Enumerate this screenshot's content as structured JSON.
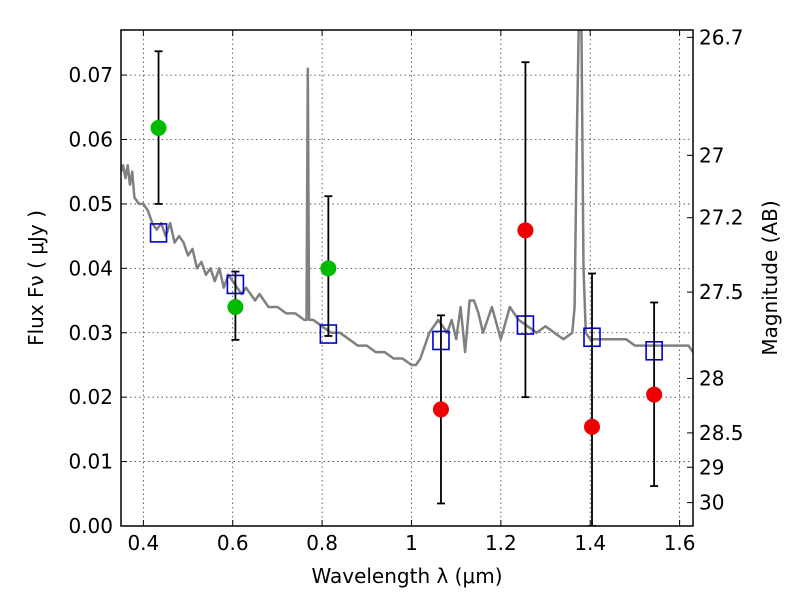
{
  "chart_data": {
    "type": "scatter",
    "title": "",
    "xlabel": "Wavelength  λ (μm)",
    "ylabel": "Flux  Fν  ( μJy )",
    "y2label": "Magnitude (AB)",
    "xlim": [
      0.35,
      1.63
    ],
    "ylim": [
      0.0,
      0.077
    ],
    "grid": true,
    "x_ticks": [
      0.4,
      0.6,
      0.8,
      1.0,
      1.2,
      1.4,
      1.6
    ],
    "x_tick_labels": [
      "0.4",
      "0.6",
      "0.8",
      "1",
      "1.2",
      "1.4",
      "1.6"
    ],
    "y_ticks": [
      0.0,
      0.01,
      0.02,
      0.03,
      0.04,
      0.05,
      0.06,
      0.07
    ],
    "y_tick_labels": [
      "0.00",
      "0.01",
      "0.02",
      "0.03",
      "0.04",
      "0.05",
      "0.06",
      "0.07"
    ],
    "y2_ticks": [
      26.7,
      27,
      27.2,
      27.5,
      28,
      28.5,
      29,
      30
    ],
    "y2_tick_labels": [
      "26.7",
      "27",
      "27.2",
      "27.5",
      "28",
      "28.5",
      "29",
      "30"
    ],
    "colors": {
      "model": "#808080",
      "model_points": "#0000cc",
      "detections": "#00bb00",
      "upper_limits": "#ee0000",
      "errorbar": "#000000"
    },
    "series": [
      {
        "kind": "line",
        "x": [
          0.35,
          0.355,
          0.36,
          0.365,
          0.37,
          0.375,
          0.38,
          0.39,
          0.4,
          0.41,
          0.42,
          0.43,
          0.44,
          0.45,
          0.46,
          0.47,
          0.48,
          0.49,
          0.5,
          0.51,
          0.52,
          0.53,
          0.54,
          0.55,
          0.56,
          0.57,
          0.58,
          0.59,
          0.6,
          0.61,
          0.62,
          0.63,
          0.64,
          0.65,
          0.66,
          0.67,
          0.68,
          0.7,
          0.72,
          0.74,
          0.76,
          0.765,
          0.768,
          0.771,
          0.774,
          0.78,
          0.8,
          0.82,
          0.84,
          0.86,
          0.88,
          0.9,
          0.92,
          0.94,
          0.96,
          0.98,
          1.0,
          1.01,
          1.02,
          1.04,
          1.06,
          1.07,
          1.08,
          1.09,
          1.1,
          1.11,
          1.12,
          1.13,
          1.14,
          1.15,
          1.16,
          1.18,
          1.2,
          1.22,
          1.24,
          1.26,
          1.28,
          1.3,
          1.32,
          1.34,
          1.36,
          1.365,
          1.37,
          1.375,
          1.38,
          1.385,
          1.39,
          1.4,
          1.42,
          1.44,
          1.46,
          1.48,
          1.5,
          1.52,
          1.54,
          1.56,
          1.58,
          1.6,
          1.62,
          1.63
        ],
        "y": [
          0.055,
          0.056,
          0.054,
          0.056,
          0.053,
          0.055,
          0.051,
          0.05,
          0.05,
          0.049,
          0.047,
          0.046,
          0.047,
          0.045,
          0.047,
          0.044,
          0.045,
          0.044,
          0.042,
          0.043,
          0.04,
          0.041,
          0.039,
          0.04,
          0.038,
          0.04,
          0.037,
          0.039,
          0.038,
          0.037,
          0.036,
          0.037,
          0.036,
          0.035,
          0.036,
          0.035,
          0.034,
          0.034,
          0.033,
          0.033,
          0.032,
          0.032,
          0.071,
          0.032,
          0.032,
          0.032,
          0.031,
          0.03,
          0.03,
          0.029,
          0.028,
          0.028,
          0.027,
          0.027,
          0.026,
          0.026,
          0.025,
          0.025,
          0.026,
          0.03,
          0.032,
          0.031,
          0.03,
          0.032,
          0.029,
          0.034,
          0.027,
          0.035,
          0.035,
          0.033,
          0.03,
          0.034,
          0.029,
          0.034,
          0.032,
          0.031,
          0.03,
          0.031,
          0.03,
          0.029,
          0.03,
          0.034,
          0.06,
          0.08,
          0.08,
          0.04,
          0.03,
          0.029,
          0.029,
          0.029,
          0.029,
          0.029,
          0.028,
          0.028,
          0.028,
          0.028,
          0.028,
          0.028,
          0.028,
          0.027
        ]
      },
      {
        "kind": "squares",
        "x": [
          0.434,
          0.606,
          0.814,
          1.066,
          1.255,
          1.404,
          1.543
        ],
        "y": [
          0.0455,
          0.0375,
          0.0298,
          0.0288,
          0.0312,
          0.0293,
          0.0272
        ]
      },
      {
        "kind": "detections",
        "x": [
          0.434,
          0.606,
          0.814
        ],
        "y": [
          0.0618,
          0.034,
          0.04
        ],
        "err_lo": [
          0.05,
          0.0289,
          0.0295
        ],
        "err_hi": [
          0.0737,
          0.0395,
          0.0512
        ]
      },
      {
        "kind": "upper_limits",
        "x": [
          1.066,
          1.255,
          1.404,
          1.543
        ],
        "y": [
          0.0181,
          0.0459,
          0.0154,
          0.0204
        ],
        "err_lo": [
          0.0035,
          0.02,
          0.0,
          0.0062
        ],
        "err_hi": [
          0.0327,
          0.072,
          0.0392,
          0.0347
        ]
      }
    ]
  }
}
